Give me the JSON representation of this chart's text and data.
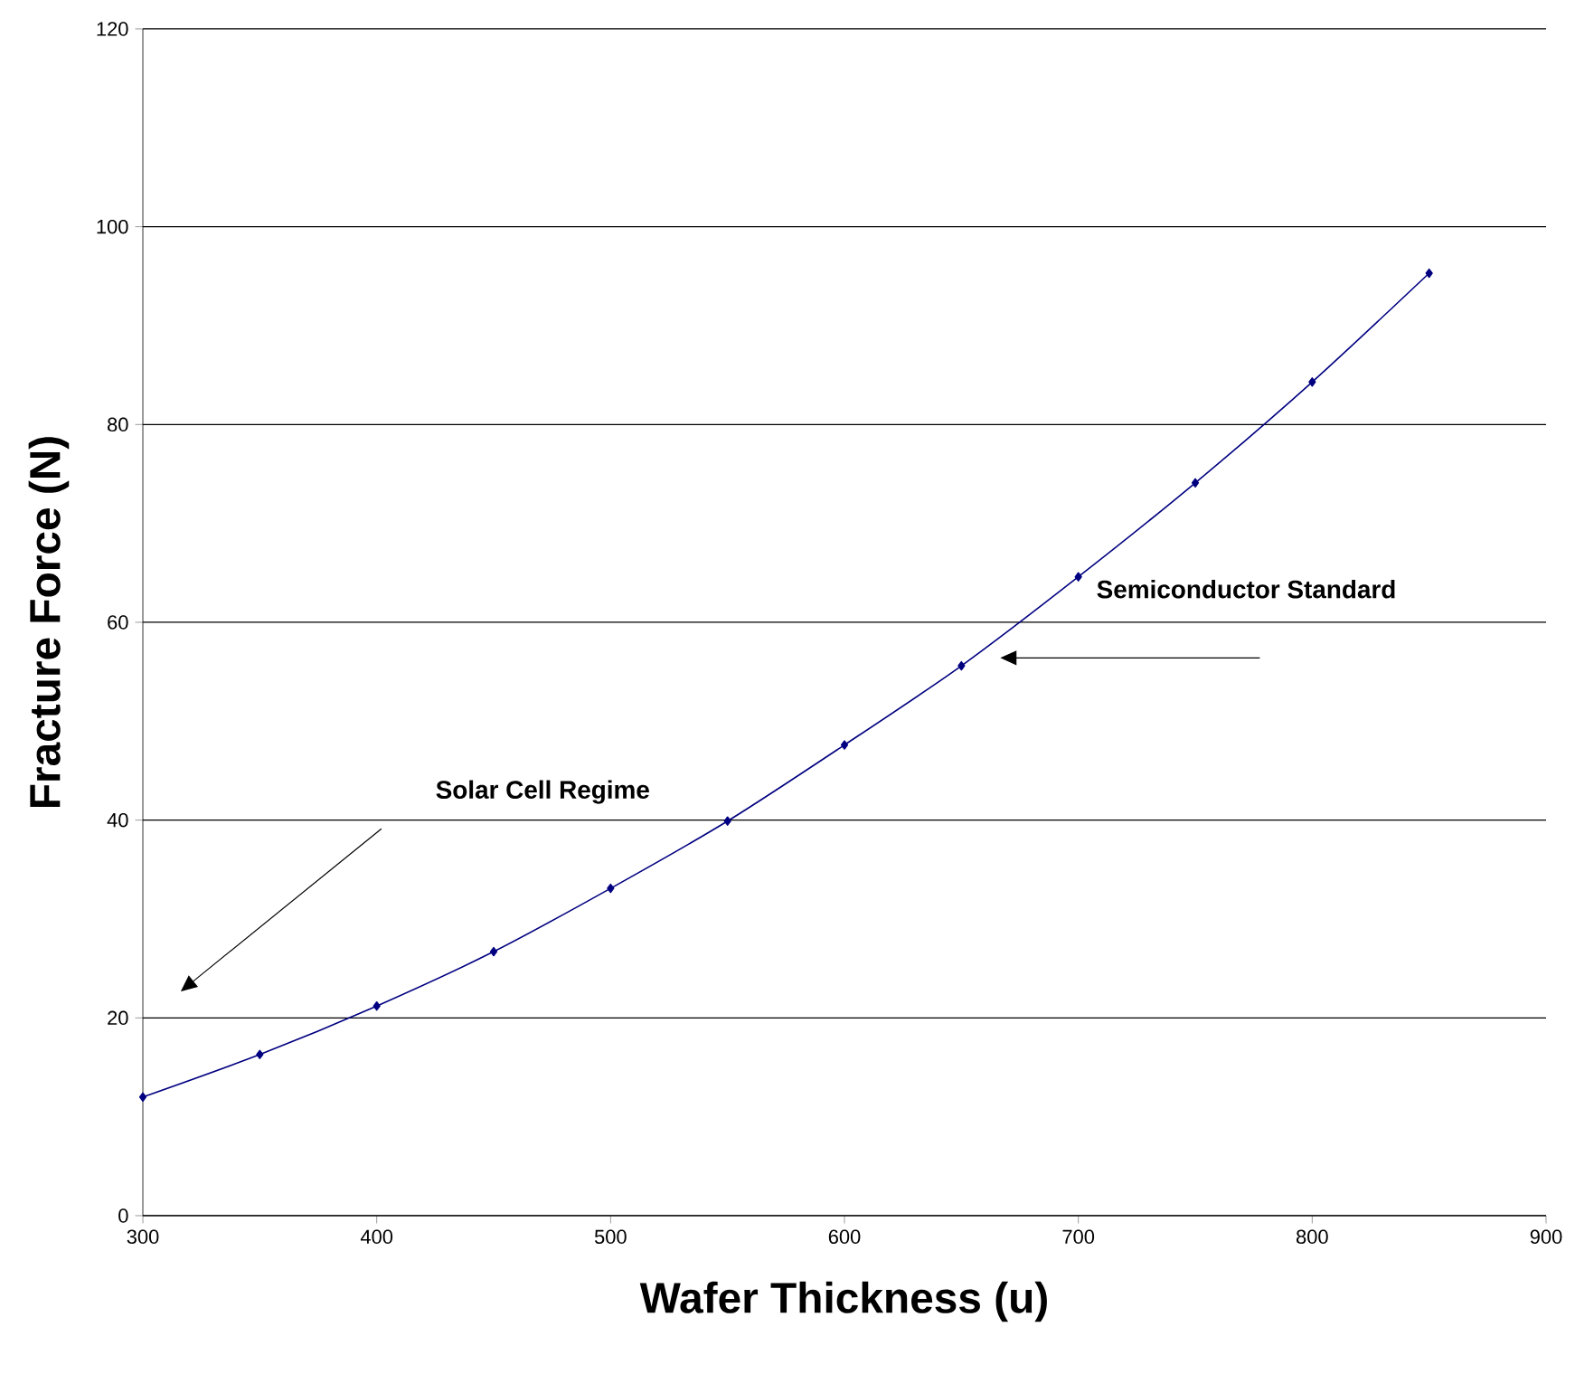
{
  "chart_data": {
    "type": "line",
    "xlabel": "Wafer Thickness (u)",
    "ylabel": "Fracture Force (N)",
    "x": [
      300,
      350,
      400,
      450,
      500,
      550,
      600,
      650,
      700,
      750,
      800,
      850
    ],
    "series": [
      {
        "color": "#000080",
        "values": [
          12,
          16.3,
          21.2,
          26.7,
          33.1,
          39.9,
          47.6,
          55.6,
          64.6,
          74.1,
          84.3,
          95.3
        ]
      }
    ],
    "xlim": [
      300,
      900
    ],
    "xticks": [
      300,
      400,
      500,
      600,
      700,
      800,
      900
    ],
    "ylim": [
      0,
      120
    ],
    "yticks": [
      0,
      20,
      40,
      60,
      80,
      100,
      120
    ],
    "grid": "y",
    "marker": "diamond",
    "line_style": "solid",
    "annotations": [
      "Solar Cell Regime",
      "Semiconductor Standard"
    ]
  }
}
